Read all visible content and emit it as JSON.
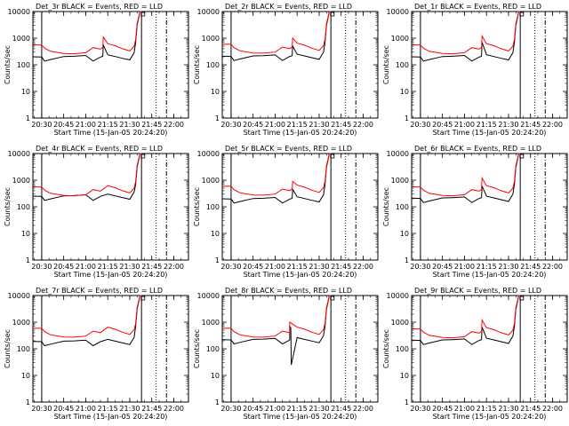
{
  "chart_data": {
    "type": "line",
    "scale": "log-y",
    "ylim": [
      1,
      10000
    ],
    "xlim_minutes": [
      "20:24",
      "22:10"
    ],
    "xlabel": "Start Time (15-Jan-05 20:24:20)",
    "ylabel": "Counts/sec",
    "xticks": [
      "20:30",
      "20:45",
      "21:00",
      "21:15",
      "21:30",
      "21:45",
      "22:00"
    ],
    "yticks": [
      "1",
      "10",
      "100",
      "1000",
      "10000"
    ],
    "series_colors": {
      "events": "#000000",
      "lld": "#ff0000"
    },
    "base": {
      "x": [
        "20:24",
        "20:30",
        "20:32",
        "20:36",
        "20:45",
        "20:52",
        "21:00",
        "21:05",
        "21:10",
        "21:15",
        "21:20",
        "21:25",
        "21:30",
        "21:33",
        "21:34",
        "21:35",
        "21:37",
        "21:38"
      ],
      "events": [
        210,
        205,
        145,
        165,
        215,
        220,
        235,
        145,
        205,
        250,
        215,
        185,
        160,
        300,
        700,
        3000,
        10000,
        10000
      ],
      "lld": [
        560,
        560,
        420,
        320,
        265,
        260,
        285,
        440,
        385,
        620,
        520,
        400,
        330,
        500,
        900,
        3500,
        10000,
        10000
      ]
    },
    "panels": [
      {
        "title": "Det_3r BLACK = Events, RED = LLD",
        "events_scale": 0.95,
        "lld_scale": 1.0,
        "vlines": [
          "20:30",
          "21:38"
        ],
        "spike": {
          "x": "21:12",
          "events": 550,
          "lld": 1100
        },
        "dip": null
      },
      {
        "title": "Det_2r BLACK = Events, RED = LLD",
        "events_scale": 1.0,
        "lld_scale": 1.05,
        "vlines": [
          "20:30",
          "21:38"
        ],
        "spike": {
          "x": "21:12",
          "events": 500,
          "lld": 1000
        },
        "dip": null
      },
      {
        "title": "Det_1r BLACK = Events, RED = LLD",
        "events_scale": 0.95,
        "lld_scale": 1.0,
        "vlines": [
          "20:30",
          "21:38"
        ],
        "spike": {
          "x": "21:12",
          "events": 700,
          "lld": 1200
        },
        "dip": null
      },
      {
        "title": "Det_4r BLACK = Events, RED = LLD",
        "events_scale": 1.2,
        "lld_scale": 1.0,
        "vlines": [
          "20:30",
          "21:38"
        ],
        "spike": null,
        "dip": null
      },
      {
        "title": "Det_5r BLACK = Events, RED = LLD",
        "events_scale": 0.95,
        "lld_scale": 1.05,
        "vlines": [
          "20:30",
          "21:38"
        ],
        "spike": {
          "x": "21:12",
          "events": 450,
          "lld": 900
        },
        "dip": null
      },
      {
        "title": "Det_6r BLACK = Events, RED = LLD",
        "events_scale": 1.0,
        "lld_scale": 1.0,
        "vlines": [
          "20:30",
          "21:38"
        ],
        "spike": {
          "x": "21:12",
          "events": 600,
          "lld": 1200
        },
        "dip": null
      },
      {
        "title": "Det_7r BLACK = Events, RED = LLD",
        "events_scale": 0.9,
        "lld_scale": 1.05,
        "vlines": [
          "20:30",
          "21:38"
        ],
        "spike": null,
        "dip": null
      },
      {
        "title": "Det_8r BLACK = Events, RED = LLD",
        "events_scale": 1.05,
        "lld_scale": 1.05,
        "vlines": [
          "20:30",
          "21:38"
        ],
        "spike": {
          "x": "21:10",
          "events": 700,
          "lld": 1000
        },
        "dip": {
          "x": "21:11",
          "events": 25
        }
      },
      {
        "title": "Det_9r BLACK = Events, RED = LLD",
        "events_scale": 1.0,
        "lld_scale": 1.0,
        "vlines": [
          "20:30",
          "21:38"
        ],
        "spike": {
          "x": "21:12",
          "events": 650,
          "lld": 1200
        },
        "dip": null
      }
    ]
  }
}
